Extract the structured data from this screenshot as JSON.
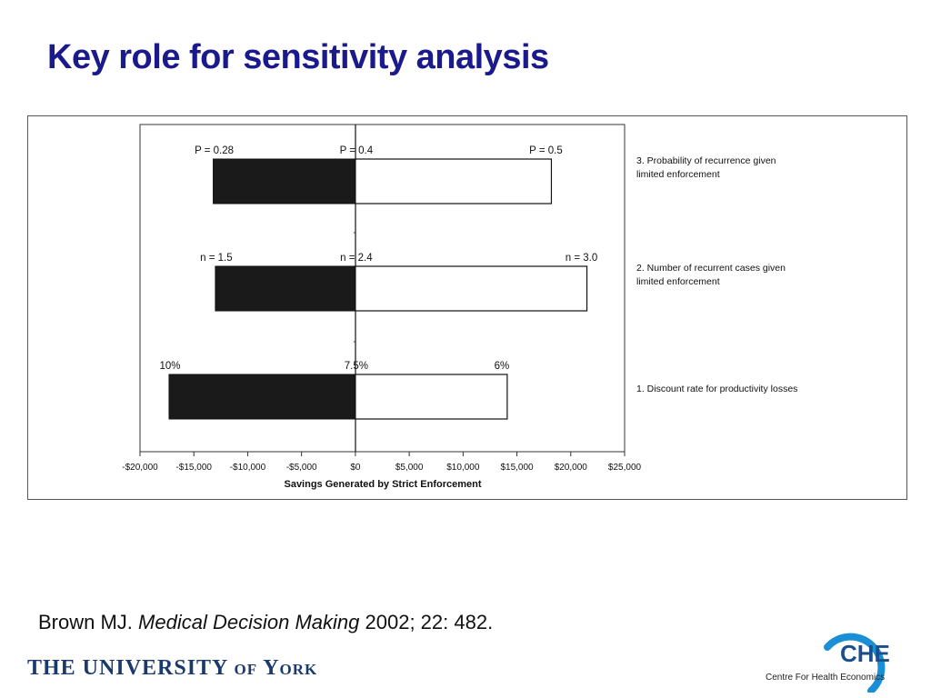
{
  "slide": {
    "title": "Key role for sensitivity analysis",
    "citation": {
      "author": "Brown MJ.",
      "journal": "Medical Decision Making",
      "details": "2002; 22: 482."
    },
    "logos": {
      "university": "THE UNIVERSITY of York",
      "che_acronym": "CHE",
      "che_name": "Centre For Health Economics"
    },
    "colors": {
      "title": "#1a1a8c",
      "che_ring": "#1b8fd6"
    }
  },
  "chart_data": {
    "type": "bar",
    "orientation": "horizontal",
    "subtype": "tornado",
    "title": "",
    "xlabel": "Savings Generated by Strict Enforcement",
    "ylabel": "",
    "xlim": [
      -20000,
      25000
    ],
    "x_ticks": [
      -20000,
      -15000,
      -10000,
      -5000,
      0,
      5000,
      10000,
      15000,
      20000,
      25000
    ],
    "x_tick_labels": [
      "-$20,000",
      "-$15,000",
      "-$10,000",
      "-$5,000",
      "$0",
      "$5,000",
      "$10,000",
      "$15,000",
      "$20,000",
      "$25,000"
    ],
    "grid": false,
    "categories": [
      {
        "label_line1": "3.  Probability of recurrence given",
        "label_line2": "limited enforcement",
        "low_value": -13200,
        "high_value": 18200,
        "low_label": "P = 0.28",
        "base_label": "P = 0.4",
        "high_label": "P = 0.5"
      },
      {
        "label_line1": "2.  Number of recurrent cases given",
        "label_line2": "limited enforcement",
        "low_value": -13000,
        "high_value": 21500,
        "low_label": "n = 1.5",
        "base_label": "n = 2.4",
        "high_label": "n = 3.0"
      },
      {
        "label_line1": "1. Discount rate for productivity losses",
        "label_line2": "",
        "low_value": -17300,
        "high_value": 14100,
        "low_label": "10%",
        "base_label": "7.5%",
        "high_label": "6%"
      }
    ],
    "colors": {
      "low_bar": "#1a1a1a",
      "high_bar": "#ffffff",
      "bar_stroke": "#111111"
    }
  }
}
